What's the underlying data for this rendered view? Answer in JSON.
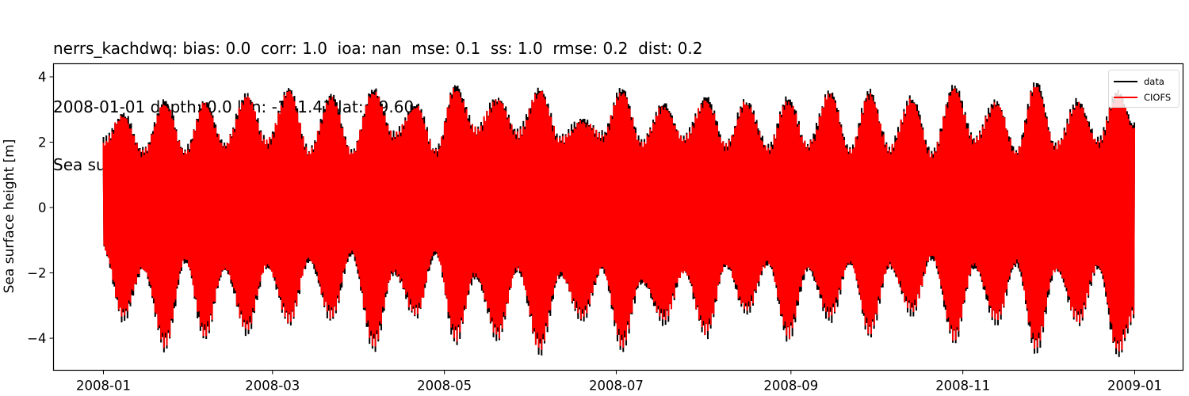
{
  "title": {
    "line1": "nerrs_kachdwq: bias: 0.0  corr: 1.0  ioa: nan  mse: 0.1  ss: 1.0  rmse: 0.2  dist: 0.2",
    "line2": "2008-01-01 depth: 0.0 lon: -151.41 lat: 59.60",
    "line3": "Sea surface height with mean subtracted, from fixed station"
  },
  "legend": {
    "items": [
      {
        "label": "data",
        "color": "#000000"
      },
      {
        "label": "CIOFS",
        "color": "#ff0000"
      }
    ]
  },
  "chart_data": {
    "type": "line",
    "title": "nerrs_kachdwq: bias: 0.0  corr: 1.0  ioa: nan  mse: 0.1  ss: 1.0  rmse: 0.2  dist: 0.2 / 2008-01-01 depth: 0.0 lon: -151.41 lat: 59.60 / Sea surface height with mean subtracted, from fixed station",
    "xlabel": "",
    "ylabel": "Sea surface height [m]",
    "ylim": [
      -4.98,
      4.4
    ],
    "xlim": [
      "2007-12-14",
      "2009-01-26"
    ],
    "yticks": [
      -4,
      -2,
      0,
      2,
      4
    ],
    "ytick_labels": [
      "−4",
      "−2",
      "0",
      "2",
      "4"
    ],
    "xticks": [
      "2008-01",
      "2008-03",
      "2008-05",
      "2008-07",
      "2008-09",
      "2008-11",
      "2009-01"
    ],
    "grid": false,
    "legend_position": "upper right",
    "x_range": [
      "2008-01-01",
      "2008-12-31"
    ],
    "series": [
      {
        "name": "data",
        "color": "#000000",
        "description": "Observed hourly sea surface height, semidiurnal tide with spring-neap modulation"
      },
      {
        "name": "CIOFS",
        "color": "#ff0000",
        "description": "Model sea surface height, nearly identical to data (slightly smaller extremes)"
      }
    ],
    "envelope": {
      "note": "Approximate spring/neap envelope read from figure (day-of-year, max m, min m)",
      "points": [
        [
          0,
          2.1,
          -1.3
        ],
        [
          7,
          3.0,
          -3.5
        ],
        [
          14,
          1.8,
          -2.0
        ],
        [
          22,
          3.4,
          -4.4
        ],
        [
          29,
          1.8,
          -1.7
        ],
        [
          36,
          3.4,
          -4.1
        ],
        [
          43,
          2.0,
          -2.0
        ],
        [
          51,
          3.6,
          -3.9
        ],
        [
          58,
          2.1,
          -1.9
        ],
        [
          66,
          3.8,
          -3.6
        ],
        [
          73,
          1.8,
          -1.7
        ],
        [
          81,
          3.6,
          -3.5
        ],
        [
          88,
          1.8,
          -1.5
        ],
        [
          96,
          3.8,
          -4.4
        ],
        [
          103,
          2.3,
          -2.1
        ],
        [
          111,
          3.3,
          -3.4
        ],
        [
          118,
          1.8,
          -1.5
        ],
        [
          125,
          3.9,
          -4.2
        ],
        [
          132,
          2.5,
          -2.2
        ],
        [
          140,
          3.5,
          -4.1
        ],
        [
          147,
          2.4,
          -2.0
        ],
        [
          155,
          3.8,
          -4.5
        ],
        [
          162,
          2.2,
          -2.2
        ],
        [
          170,
          2.8,
          -3.5
        ],
        [
          177,
          2.3,
          -2.0
        ],
        [
          184,
          3.8,
          -4.4
        ],
        [
          191,
          2.1,
          -2.4
        ],
        [
          199,
          3.3,
          -3.6
        ],
        [
          206,
          2.2,
          -2.1
        ],
        [
          214,
          3.5,
          -4.0
        ],
        [
          221,
          2.0,
          -1.9
        ],
        [
          228,
          3.4,
          -3.3
        ],
        [
          236,
          1.9,
          -1.8
        ],
        [
          243,
          3.5,
          -4.1
        ],
        [
          250,
          2.0,
          -2.0
        ],
        [
          258,
          3.7,
          -3.5
        ],
        [
          265,
          1.8,
          -1.8
        ],
        [
          272,
          3.7,
          -4.0
        ],
        [
          279,
          1.9,
          -1.9
        ],
        [
          287,
          3.5,
          -3.3
        ],
        [
          294,
          1.7,
          -1.6
        ],
        [
          302,
          3.9,
          -4.2
        ],
        [
          309,
          2.2,
          -1.9
        ],
        [
          317,
          3.4,
          -3.6
        ],
        [
          324,
          1.8,
          -1.8
        ],
        [
          331,
          4.0,
          -4.5
        ],
        [
          338,
          2.0,
          -2.0
        ],
        [
          346,
          3.4,
          -3.6
        ],
        [
          353,
          2.1,
          -1.9
        ],
        [
          360,
          3.7,
          -4.6
        ],
        [
          366,
          2.6,
          -3.4
        ]
      ]
    }
  }
}
